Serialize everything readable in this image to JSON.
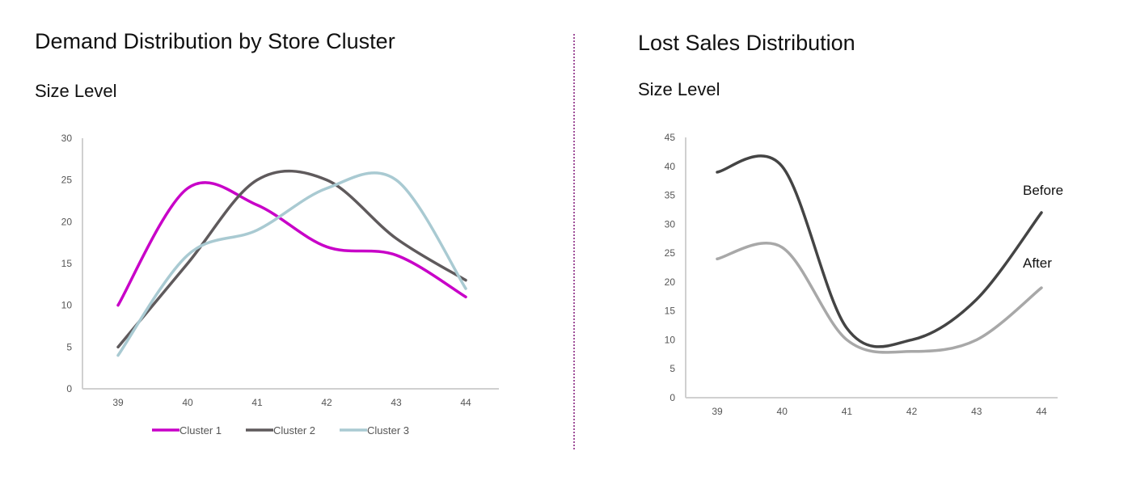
{
  "chart_data": [
    {
      "type": "line",
      "title": "Demand Distribution by Store Cluster",
      "subtitle": "Size Level",
      "categories": [
        "39",
        "40",
        "41",
        "42",
        "43",
        "44"
      ],
      "ylim": [
        0,
        30
      ],
      "yticks": [
        "0",
        "5",
        "10",
        "15",
        "20",
        "25",
        "30"
      ],
      "smooth": true,
      "grid": false,
      "legend": "bottom",
      "series": [
        {
          "name": "Cluster 1",
          "color": "#c800c8",
          "values": [
            10,
            24,
            22,
            17,
            16,
            11
          ]
        },
        {
          "name": "Cluster 2",
          "color": "#5f5a5c",
          "values": [
            5,
            15,
            25,
            25,
            18,
            13
          ]
        },
        {
          "name": "Cluster 3",
          "color": "#a9cad2",
          "values": [
            4,
            16,
            19,
            24,
            25,
            12
          ]
        }
      ]
    },
    {
      "type": "line",
      "title": "Lost Sales Distribution",
      "subtitle": "Size Level",
      "categories": [
        "39",
        "40",
        "41",
        "42",
        "43",
        "44"
      ],
      "ylim": [
        0,
        45
      ],
      "yticks": [
        "0",
        "5",
        "10",
        "15",
        "20",
        "25",
        "30",
        "35",
        "40",
        "45"
      ],
      "smooth": true,
      "grid": false,
      "legend": "inline-right",
      "series": [
        {
          "name": "Before",
          "color": "#444444",
          "values": [
            39,
            40,
            12,
            10,
            17,
            32
          ]
        },
        {
          "name": "After",
          "color": "#a8a8a8",
          "values": [
            24,
            26,
            10,
            8,
            10,
            19
          ]
        }
      ]
    }
  ]
}
